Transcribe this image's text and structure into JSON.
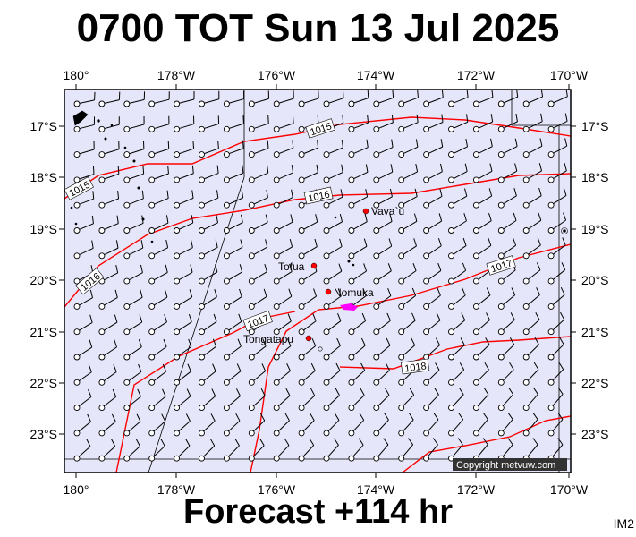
{
  "title": "0700 TOT Sun 13 Jul 2025",
  "footer": "Forecast +114 hr",
  "image_code": "IM2",
  "copyright": "Copyright metvuw.com",
  "colors": {
    "ocean": "#e6e6fa",
    "isobar": "#ff0000",
    "barb": "#000000",
    "island_marker": "#ff0000",
    "highlight": "#ff00ff"
  },
  "axes": {
    "lon_labels": [
      "180°",
      "178°W",
      "176°W",
      "174°W",
      "172°W",
      "170°W"
    ],
    "lat_labels": [
      "17°S",
      "18°S",
      "19°S",
      "20°S",
      "21°S",
      "22°S",
      "23°S"
    ]
  },
  "places": [
    {
      "name": "Vava'u",
      "label": "Vava`u",
      "lon": -174.0,
      "lat": -18.65
    },
    {
      "name": "Tofua",
      "label": "Tofua",
      "lon": -175.07,
      "lat": -19.75
    },
    {
      "name": "Nomuka",
      "label": "Nomuka",
      "lon": -174.8,
      "lat": -20.25
    },
    {
      "name": "Tongatapu",
      "label": "Tongatapu",
      "lon": -175.2,
      "lat": -21.13
    }
  ],
  "isobars": [
    {
      "value": 1015,
      "label": "1015"
    },
    {
      "value": 1016,
      "label": "1016"
    },
    {
      "value": 1017,
      "label": "1017"
    },
    {
      "value": 1018,
      "label": "1018"
    }
  ],
  "wind_field": "southeast trade winds, light to moderate"
}
